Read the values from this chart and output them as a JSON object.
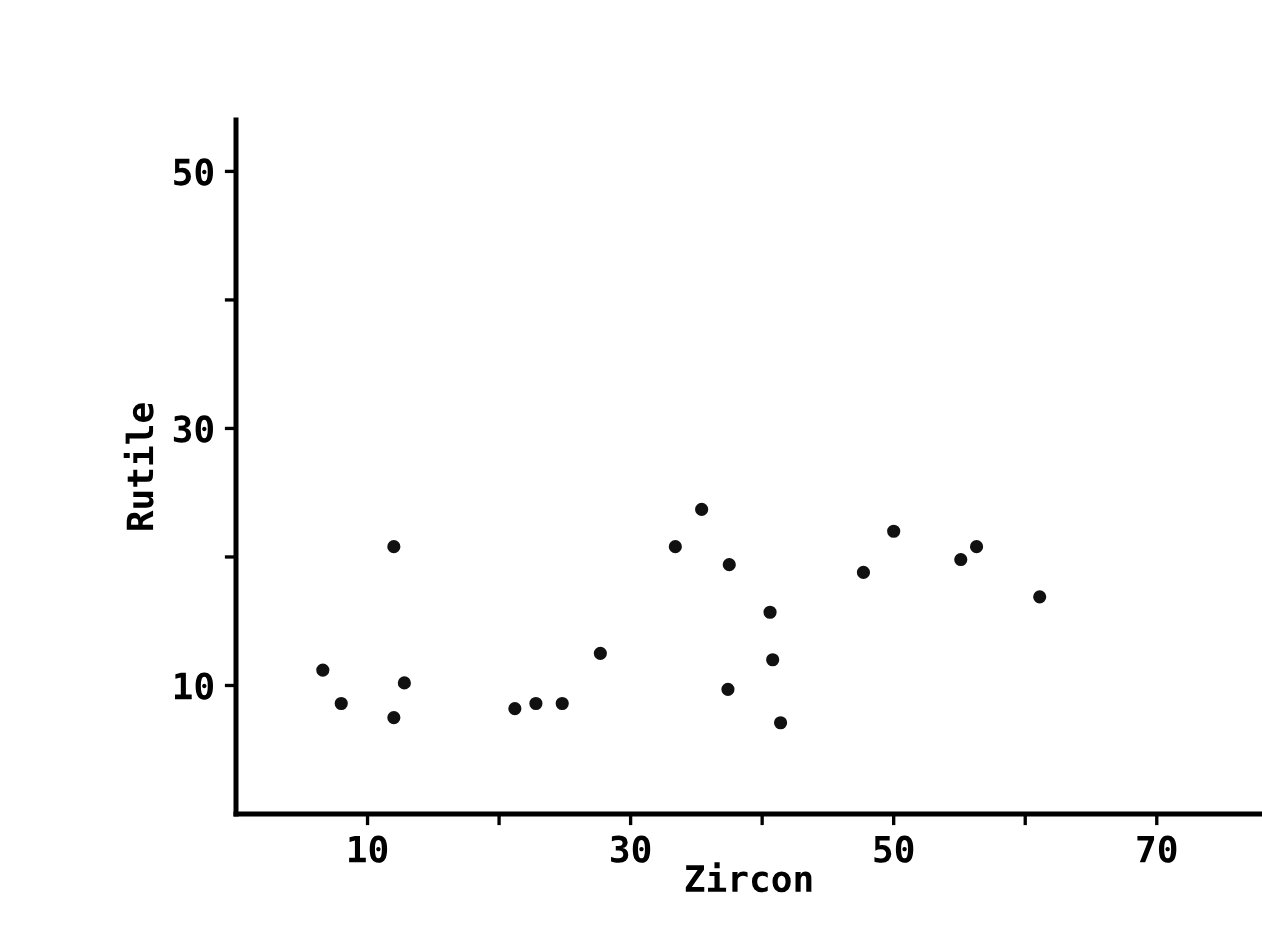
{
  "chart_data": {
    "type": "scatter",
    "xlabel": "Zircon",
    "ylabel": "Rutile",
    "series": [
      {
        "color": "#111111",
        "x": [
          6.6,
          8.0,
          12.0,
          12.8,
          12.0,
          21.2,
          22.8,
          24.8,
          27.7,
          33.4,
          35.4,
          37.5,
          40.6,
          40.8,
          37.4,
          41.4,
          47.7,
          50.0,
          55.1,
          56.3,
          61.1
        ],
        "values": [
          11.2,
          8.6,
          20.8,
          10.2,
          7.5,
          8.2,
          8.6,
          8.6,
          12.5,
          20.8,
          23.7,
          19.4,
          15.7,
          12.0,
          9.7,
          7.1,
          18.8,
          22.0,
          19.8,
          20.8,
          16.9
        ]
      }
    ],
    "xlim": [
      0,
      78
    ],
    "ylim": [
      0,
      54
    ],
    "xticks": [
      10,
      {
        "value": 20,
        "label": null
      },
      30,
      {
        "value": 40,
        "label": null
      },
      50,
      {
        "value": 60,
        "label": null
      },
      70
    ],
    "yticks": [
      10,
      {
        "value": 20,
        "label": null
      },
      30,
      {
        "value": 40,
        "label": null
      },
      50
    ],
    "marker": "circle"
  }
}
